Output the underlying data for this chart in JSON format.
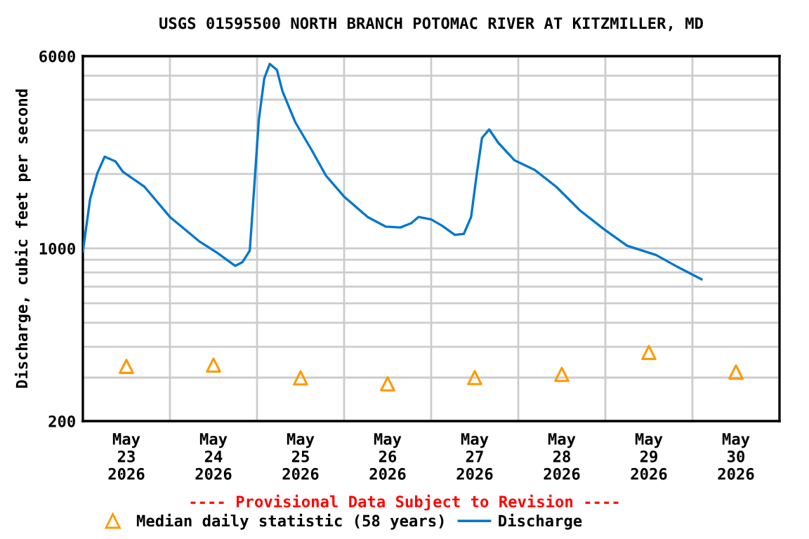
{
  "chart_data": {
    "type": "line",
    "title": "USGS 01595500 NORTH BRANCH POTOMAC RIVER AT KITZMILLER, MD",
    "ylabel": "Discharge, cubic feet per second",
    "annotations": [
      "---- Provisional Data Subject to Revision ----"
    ],
    "log": "y",
    "ylim": [
      200,
      6000
    ],
    "yticks": [
      200,
      {
        "value": 300,
        "label": null
      },
      {
        "value": 400,
        "label": null
      },
      {
        "value": 500,
        "label": null
      },
      {
        "value": 600,
        "label": null
      },
      {
        "value": 700,
        "label": null
      },
      {
        "value": 800,
        "label": null
      },
      {
        "value": 900,
        "label": null
      },
      1000,
      {
        "value": 2000,
        "label": null
      },
      {
        "value": 3000,
        "label": null
      },
      {
        "value": 4000,
        "label": null
      },
      {
        "value": 5000,
        "label": null
      },
      6000
    ],
    "xlim": [
      "2026-05-23T00:00",
      "2026-05-31T00:00"
    ],
    "xticks": [
      {
        "value": "2026-05-23T12:00",
        "label": "May\n23\n2026"
      },
      {
        "value": "2026-05-24T00:00",
        "label": null
      },
      {
        "value": "2026-05-24T12:00",
        "label": "May\n24\n2026"
      },
      {
        "value": "2026-05-25T00:00",
        "label": null
      },
      {
        "value": "2026-05-25T12:00",
        "label": "May\n25\n2026"
      },
      {
        "value": "2026-05-26T00:00",
        "label": null
      },
      {
        "value": "2026-05-26T12:00",
        "label": "May\n26\n2026"
      },
      {
        "value": "2026-05-27T00:00",
        "label": null
      },
      {
        "value": "2026-05-27T12:00",
        "label": "May\n27\n2026"
      },
      {
        "value": "2026-05-28T00:00",
        "label": null
      },
      {
        "value": "2026-05-28T12:00",
        "label": "May\n28\n2026"
      },
      {
        "value": "2026-05-29T00:00",
        "label": null
      },
      {
        "value": "2026-05-29T12:00",
        "label": "May\n29\n2026"
      },
      {
        "value": "2026-05-30T00:00",
        "label": null
      },
      {
        "value": "2026-05-30T12:00",
        "label": "May\n30\n2026"
      }
    ],
    "grid": true,
    "legend": "bottom",
    "series": [
      {
        "name": "Median daily statistic (58 years)",
        "type": "scatter",
        "marker": "triangle",
        "color": "#ff9900",
        "x": [
          "2026-05-23T12:00",
          "2026-05-24T12:00",
          "2026-05-25T12:00",
          "2026-05-26T12:00",
          "2026-05-27T12:00",
          "2026-05-28T12:00",
          "2026-05-29T12:00",
          "2026-05-30T12:00"
        ],
        "values": [
          333,
          337,
          299,
          283,
          300,
          309,
          379,
          316
        ]
      },
      {
        "name": "Discharge",
        "color": "#0077cc",
        "x": [
          "2026-05-23T00:00",
          "2026-05-23T02:00",
          "2026-05-23T04:00",
          "2026-05-23T06:00",
          "2026-05-23T09:00",
          "2026-05-23T11:00",
          "2026-05-23T17:00",
          "2026-05-24T00:00",
          "2026-05-24T08:00",
          "2026-05-24T13:00",
          "2026-05-24T18:00",
          "2026-05-24T20:00",
          "2026-05-24T22:00",
          "2026-05-24T23:00",
          "2026-05-25T00:30",
          "2026-05-25T02:00",
          "2026-05-25T03:30",
          "2026-05-25T05:30",
          "2026-05-25T07:00",
          "2026-05-25T10:30",
          "2026-05-25T15:00",
          "2026-05-25T19:00",
          "2026-05-26T00:00",
          "2026-05-26T06:30",
          "2026-05-26T11:30",
          "2026-05-26T15:30",
          "2026-05-26T18:30",
          "2026-05-26T20:30",
          "2026-05-27T00:00",
          "2026-05-27T03:00",
          "2026-05-27T06:30",
          "2026-05-27T09:00",
          "2026-05-27T11:00",
          "2026-05-27T12:30",
          "2026-05-27T14:00",
          "2026-05-27T16:00",
          "2026-05-27T18:30",
          "2026-05-27T23:00",
          "2026-05-28T04:30",
          "2026-05-28T10:30",
          "2026-05-28T17:00",
          "2026-05-28T23:30",
          "2026-05-29T06:00",
          "2026-05-29T14:00",
          "2026-05-29T20:00",
          "2026-05-30T02:30"
        ],
        "values": [
          972,
          1585,
          2018,
          2350,
          2250,
          2045,
          1775,
          1340,
          1070,
          960,
          850,
          880,
          980,
          1585,
          3320,
          4880,
          5580,
          5270,
          4330,
          3250,
          2510,
          1970,
          1620,
          1340,
          1225,
          1215,
          1265,
          1340,
          1310,
          1235,
          1135,
          1145,
          1340,
          1970,
          2800,
          3030,
          2675,
          2270,
          2080,
          1775,
          1425,
          1200,
          1025,
          940,
          840,
          750
        ]
      }
    ]
  }
}
